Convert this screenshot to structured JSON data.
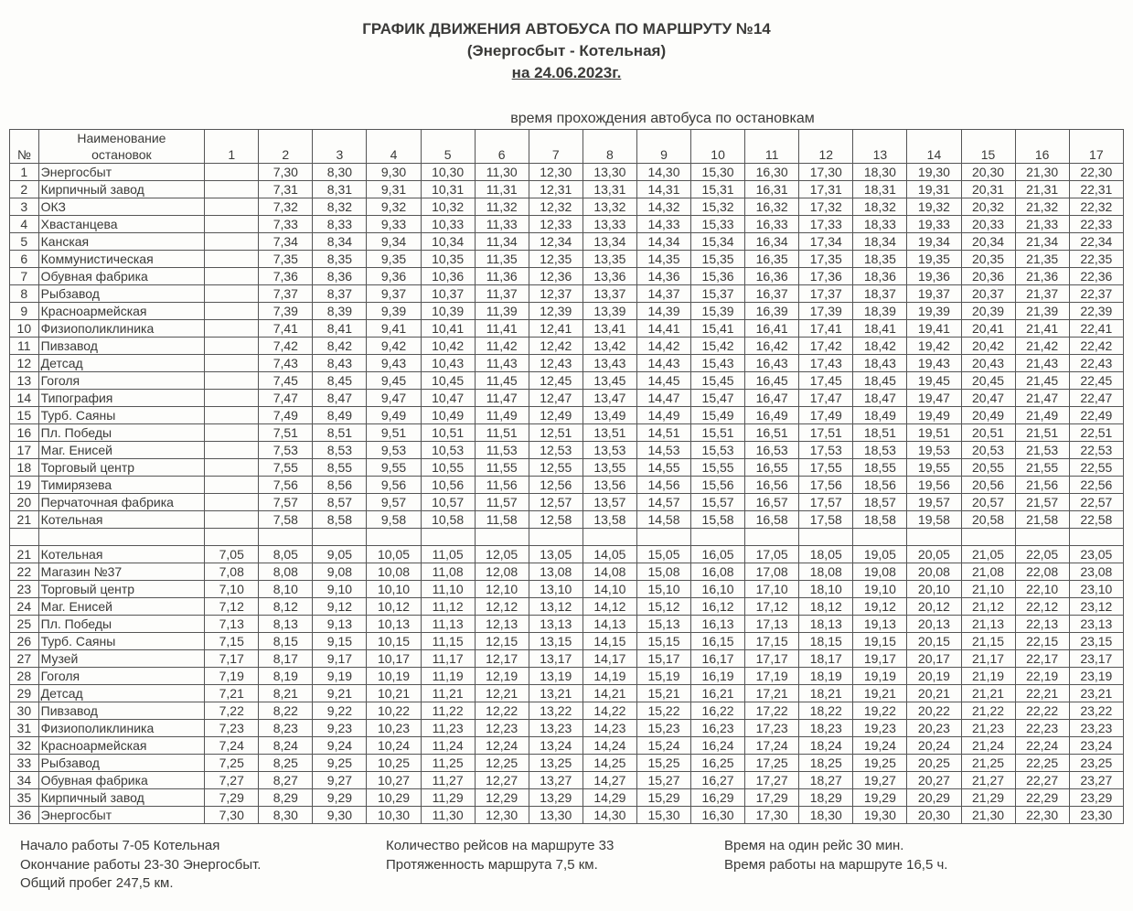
{
  "title_line1": "ГРАФИК ДВИЖЕНИЯ АВТОБУСА ПО МАРШРУТУ №14",
  "title_line2": "(Энергосбыт - Котельная)",
  "title_line3": "на 24.06.2023г.",
  "subheading": "время прохождения автобуса по остановкам",
  "head_num": "№",
  "head_stop_l1": "Наименование",
  "head_stop_l2": "остановок",
  "trip_cols": [
    "1",
    "2",
    "3",
    "4",
    "5",
    "6",
    "7",
    "8",
    "9",
    "10",
    "11",
    "12",
    "13",
    "14",
    "15",
    "16",
    "17"
  ],
  "dir1_stops": [
    "Энергосбыт",
    "Кирпичный завод",
    "ОКЗ",
    "Хвастанцева",
    "Канская",
    "Коммунистическая",
    "Обувная фабрика",
    "Рыбзавод",
    "Красноармейская",
    "Физиополиклиника",
    "Пивзавод",
    "Детсад",
    "Гоголя",
    "Типография",
    "Турб. Саяны",
    "Пл. Победы",
    "Маг. Енисей",
    "Торговый центр",
    "Тимирязева",
    "Перчаточная фабрика",
    "Котельная"
  ],
  "dir1_nums": [
    "1",
    "2",
    "3",
    "4",
    "5",
    "6",
    "7",
    "8",
    "9",
    "10",
    "11",
    "12",
    "13",
    "14",
    "15",
    "16",
    "17",
    "18",
    "19",
    "20",
    "21"
  ],
  "dir1_offsets": [
    30,
    31,
    32,
    33,
    34,
    35,
    36,
    37,
    39,
    41,
    42,
    43,
    45,
    47,
    49,
    51,
    53,
    55,
    56,
    57,
    58
  ],
  "dir1_start_hours": [
    7,
    8,
    9,
    10,
    11,
    12,
    13,
    14,
    15,
    16,
    17,
    18,
    19,
    20,
    21,
    22
  ],
  "dir2_stops": [
    "Котельная",
    "Магазин №37",
    "Торговый центр",
    "Маг. Енисей",
    "Пл. Победы",
    "Турб. Саяны",
    "Музей",
    "Гоголя",
    "Детсад",
    "Пивзавод",
    "Физиополиклиника",
    "Красноармейская",
    "Рыбзавод",
    "Обувная фабрика",
    "Кирпичный завод",
    "Энергосбыт"
  ],
  "dir2_nums": [
    "21",
    "22",
    "23",
    "24",
    "25",
    "26",
    "27",
    "28",
    "29",
    "30",
    "31",
    "32",
    "33",
    "34",
    "35",
    "36"
  ],
  "dir2_offsets": [
    5,
    8,
    10,
    12,
    13,
    15,
    17,
    19,
    21,
    22,
    23,
    24,
    25,
    27,
    29,
    30
  ],
  "dir2_start_hours": [
    7,
    8,
    9,
    10,
    11,
    12,
    13,
    14,
    15,
    16,
    17,
    18,
    19,
    20,
    21,
    22,
    23
  ],
  "footer": {
    "c1l1": "Начало работы 7-05 Котельная",
    "c1l2": "Окончание работы 23-30 Энергосбыт.",
    "c1l3": "Общий пробег 247,5 км.",
    "c2l1": "Количество рейсов на маршруте 33",
    "c2l2": "Протяженность маршрута 7,5 км.",
    "c3l1": "Время на один рейс 30 мин.",
    "c3l2": "Время работы на маршруте 16,5 ч."
  },
  "colors": {
    "text": "#3a3a38",
    "border": "#555555",
    "background": "#fdfdfb"
  }
}
